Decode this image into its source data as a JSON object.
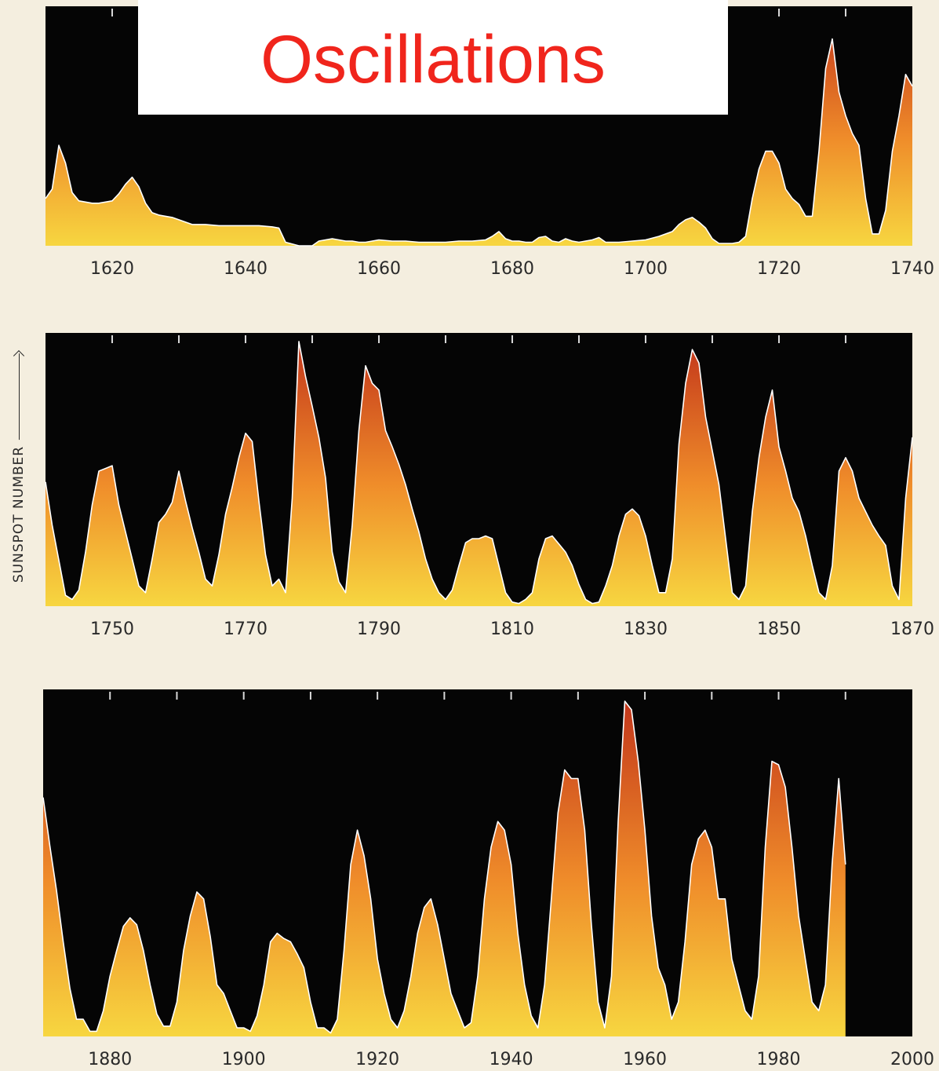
{
  "title": "Oscillations",
  "ylabel": "SUNSPOT NUMBER",
  "colors": {
    "background": "#f4eedf",
    "panel": "#050505",
    "fill_top": "#c0311a",
    "fill_mid": "#ef8c2a",
    "fill_bottom": "#f7d640",
    "outline": "#ffffff",
    "title": "#f0251c"
  },
  "chart_data": [
    {
      "type": "area",
      "xlabel": "",
      "ylabel": "SUNSPOT NUMBER",
      "xlim": [
        1610,
        1740
      ],
      "ylim": [
        0,
        200
      ],
      "xticks": [
        "1620",
        "1640",
        "1660",
        "1680",
        "1700",
        "1720",
        "1740"
      ],
      "series": [
        {
          "x": [
            1610,
            1611,
            1612,
            1613,
            1614,
            1615,
            1616,
            1617,
            1618,
            1619,
            1620,
            1621,
            1622,
            1623,
            1624,
            1625,
            1626,
            1627,
            1628,
            1629,
            1630,
            1632,
            1634,
            1636,
            1638,
            1640,
            1642,
            1644,
            1645,
            1646,
            1648,
            1650,
            1651,
            1652,
            1653,
            1654,
            1655,
            1656,
            1657,
            1658,
            1659,
            1660,
            1662,
            1664,
            1666,
            1668,
            1670,
            1672,
            1674,
            1676,
            1677,
            1678,
            1679,
            1680,
            1681,
            1682,
            1683,
            1684,
            1685,
            1686,
            1687,
            1688,
            1689,
            1690,
            1692,
            1693,
            1694,
            1695,
            1696,
            1698,
            1700,
            1702,
            1704,
            1705,
            1706,
            1707,
            1708,
            1709,
            1710,
            1711,
            1712,
            1713,
            1714,
            1715,
            1716,
            1717,
            1718,
            1719,
            1720,
            1721,
            1722,
            1723,
            1724,
            1725,
            1726,
            1727,
            1728,
            1729,
            1730,
            1731,
            1732,
            1733,
            1734,
            1735,
            1736,
            1737,
            1738,
            1739,
            1740
          ],
          "y": [
            40,
            48,
            85,
            70,
            45,
            38,
            37,
            36,
            36,
            37,
            38,
            44,
            52,
            58,
            50,
            36,
            28,
            26,
            25,
            24,
            22,
            18,
            18,
            17,
            17,
            17,
            17,
            16,
            15,
            3,
            0,
            0,
            4,
            5,
            6,
            5,
            4,
            4,
            3,
            3,
            4,
            5,
            4,
            4,
            3,
            3,
            3,
            4,
            4,
            5,
            8,
            12,
            6,
            4,
            4,
            3,
            3,
            7,
            8,
            4,
            3,
            6,
            4,
            3,
            5,
            7,
            3,
            3,
            3,
            4,
            5,
            8,
            12,
            18,
            22,
            24,
            20,
            15,
            6,
            2,
            2,
            2,
            3,
            8,
            40,
            65,
            80,
            80,
            70,
            48,
            40,
            35,
            25,
            25,
            80,
            150,
            175,
            130,
            110,
            95,
            85,
            40,
            10,
            10,
            30,
            80,
            110,
            145,
            135
          ]
        }
      ]
    },
    {
      "type": "area",
      "xlabel": "",
      "ylabel": "SUNSPOT NUMBER",
      "xlim": [
        1740,
        1870
      ],
      "ylim": [
        0,
        200
      ],
      "xticks": [
        "1750",
        "1770",
        "1790",
        "1810",
        "1830",
        "1850",
        "1870"
      ],
      "series": [
        {
          "x": [
            1740,
            1741,
            1743,
            1744,
            1745,
            1746,
            1747,
            1748,
            1749,
            1750,
            1751,
            1752,
            1753,
            1754,
            1755,
            1756,
            1757,
            1758,
            1759,
            1760,
            1761,
            1762,
            1763,
            1764,
            1765,
            1766,
            1767,
            1768,
            1769,
            1770,
            1771,
            1772,
            1773,
            1774,
            1775,
            1776,
            1777,
            1778,
            1779,
            1780,
            1781,
            1782,
            1783,
            1784,
            1785,
            1786,
            1787,
            1788,
            1789,
            1790,
            1791,
            1792,
            1793,
            1794,
            1795,
            1796,
            1797,
            1798,
            1799,
            1800,
            1801,
            1802,
            1803,
            1804,
            1805,
            1806,
            1807,
            1808,
            1809,
            1810,
            1811,
            1812,
            1813,
            1814,
            1815,
            1816,
            1817,
            1818,
            1819,
            1820,
            1821,
            1822,
            1823,
            1824,
            1825,
            1826,
            1827,
            1828,
            1829,
            1830,
            1831,
            1832,
            1833,
            1834,
            1835,
            1836,
            1837,
            1838,
            1839,
            1840,
            1841,
            1842,
            1843,
            1844,
            1845,
            1846,
            1847,
            1848,
            1849,
            1850,
            1851,
            1852,
            1853,
            1854,
            1855,
            1856,
            1857,
            1858,
            1859,
            1860,
            1861,
            1862,
            1863,
            1864,
            1865,
            1866,
            1867,
            1868,
            1869,
            1870
          ],
          "y": [
            92,
            60,
            8,
            5,
            12,
            40,
            75,
            100,
            102,
            104,
            75,
            55,
            35,
            15,
            10,
            35,
            62,
            68,
            77,
            100,
            78,
            58,
            40,
            20,
            15,
            38,
            68,
            88,
            110,
            128,
            122,
            78,
            38,
            15,
            20,
            10,
            80,
            196,
            170,
            148,
            125,
            95,
            40,
            18,
            10,
            60,
            130,
            178,
            165,
            160,
            130,
            118,
            105,
            90,
            72,
            55,
            35,
            20,
            10,
            5,
            12,
            30,
            47,
            50,
            50,
            52,
            50,
            30,
            10,
            3,
            2,
            5,
            10,
            35,
            50,
            52,
            46,
            40,
            30,
            16,
            5,
            2,
            3,
            15,
            30,
            52,
            68,
            72,
            67,
            52,
            30,
            10,
            10,
            35,
            120,
            165,
            190,
            180,
            140,
            115,
            90,
            50,
            10,
            5,
            15,
            70,
            110,
            140,
            160,
            118,
            100,
            80,
            70,
            52,
            30,
            10,
            5,
            30,
            100,
            110,
            100,
            80,
            70,
            60,
            52,
            45,
            15,
            5,
            80,
            125
          ]
        }
      ]
    },
    {
      "type": "area",
      "xlabel": "",
      "ylabel": "SUNSPOT NUMBER",
      "xlim": [
        1870,
        2000
      ],
      "ylim": [
        0,
        200
      ],
      "xticks": [
        "1880",
        "1900",
        "1920",
        "1940",
        "1960",
        "1980",
        "2000"
      ],
      "series": [
        {
          "x": [
            1870,
            1871,
            1872,
            1873,
            1874,
            1875,
            1876,
            1877,
            1878,
            1879,
            1880,
            1881,
            1882,
            1883,
            1884,
            1885,
            1886,
            1887,
            1888,
            1889,
            1890,
            1891,
            1892,
            1893,
            1894,
            1895,
            1896,
            1897,
            1898,
            1899,
            1900,
            1901,
            1902,
            1903,
            1904,
            1905,
            1906,
            1907,
            1908,
            1909,
            1910,
            1911,
            1912,
            1913,
            1914,
            1915,
            1916,
            1917,
            1918,
            1919,
            1920,
            1921,
            1922,
            1923,
            1924,
            1925,
            1926,
            1927,
            1928,
            1929,
            1930,
            1931,
            1932,
            1933,
            1934,
            1935,
            1936,
            1937,
            1938,
            1939,
            1940,
            1941,
            1942,
            1943,
            1944,
            1945,
            1946,
            1947,
            1948,
            1949,
            1950,
            1951,
            1952,
            1953,
            1954,
            1955,
            1956,
            1957,
            1958,
            1959,
            1960,
            1961,
            1962,
            1963,
            1964,
            1965,
            1966,
            1967,
            1968,
            1969,
            1970,
            1971,
            1972,
            1973,
            1974,
            1975,
            1976,
            1977,
            1978,
            1979,
            1980,
            1981,
            1982,
            1983,
            1984,
            1985,
            1986,
            1987,
            1988,
            1989,
            1990
          ],
          "y": [
            139,
            111,
            85,
            55,
            28,
            10,
            10,
            3,
            3,
            15,
            35,
            50,
            64,
            69,
            65,
            50,
            30,
            13,
            6,
            6,
            20,
            50,
            70,
            84,
            80,
            58,
            30,
            25,
            15,
            5,
            5,
            3,
            12,
            30,
            55,
            60,
            57,
            55,
            48,
            40,
            20,
            5,
            5,
            2,
            10,
            50,
            100,
            120,
            105,
            80,
            45,
            25,
            10,
            5,
            15,
            35,
            60,
            75,
            80,
            65,
            45,
            25,
            15,
            5,
            8,
            35,
            80,
            110,
            125,
            120,
            100,
            60,
            30,
            12,
            5,
            30,
            80,
            130,
            155,
            150,
            150,
            120,
            65,
            20,
            5,
            35,
            125,
            195,
            190,
            160,
            120,
            70,
            40,
            30,
            10,
            20,
            55,
            100,
            115,
            120,
            110,
            80,
            80,
            45,
            30,
            15,
            10,
            35,
            110,
            160,
            158,
            145,
            110,
            70,
            45,
            20,
            15,
            30,
            100,
            150,
            100
          ]
        }
      ]
    }
  ]
}
